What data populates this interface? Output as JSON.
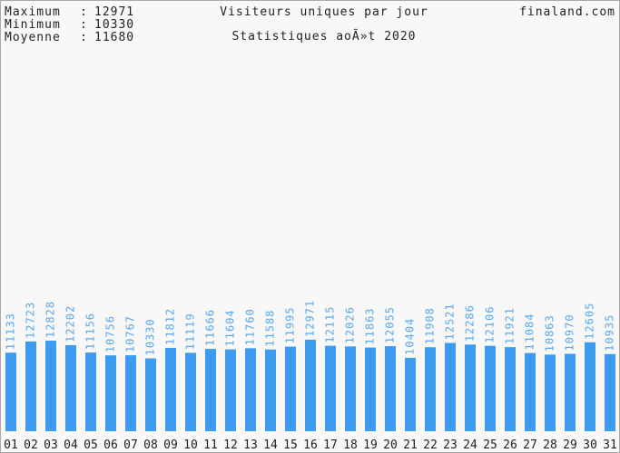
{
  "chart_data": {
    "type": "bar",
    "title": "Visiteurs uniques par jour",
    "subtitle": "Statistiques aoÃ»t 2020",
    "site": "finaland.com",
    "stats": [
      {
        "label": "Maximum",
        "value": 12971
      },
      {
        "label": "Minimum",
        "value": 10330
      },
      {
        "label": "Moyenne",
        "value": 11680
      }
    ],
    "categories": [
      "01",
      "02",
      "03",
      "04",
      "05",
      "06",
      "07",
      "08",
      "09",
      "10",
      "11",
      "12",
      "13",
      "14",
      "15",
      "16",
      "17",
      "18",
      "19",
      "20",
      "21",
      "22",
      "23",
      "24",
      "25",
      "26",
      "27",
      "28",
      "29",
      "30",
      "31"
    ],
    "values": [
      11133,
      12723,
      12828,
      12202,
      11156,
      10756,
      10767,
      10330,
      11812,
      11119,
      11666,
      11604,
      11760,
      11588,
      11995,
      12971,
      12115,
      12026,
      11863,
      12055,
      10404,
      11908,
      12521,
      12286,
      12106,
      11921,
      11084,
      10863,
      10970,
      12605,
      10935
    ],
    "color": "#3d9bf0"
  }
}
